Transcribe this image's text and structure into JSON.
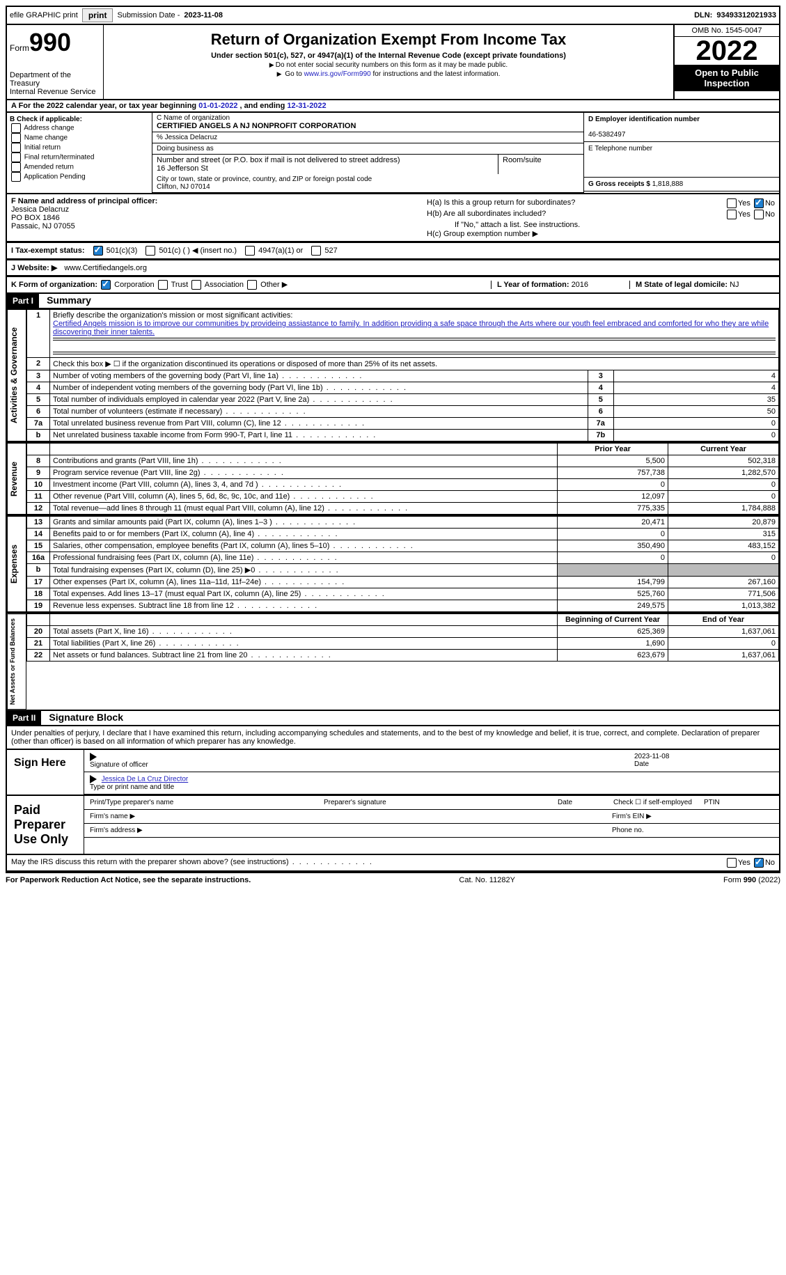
{
  "topbar": {
    "efile": "efile GRAPHIC print",
    "subdate_label": "Submission Date - ",
    "subdate": "2023-11-08",
    "dln_label": "DLN: ",
    "dln": "93493312021933"
  },
  "header": {
    "form_word": "Form",
    "form_num": "990",
    "dept": "Department of the Treasury",
    "irs": "Internal Revenue Service",
    "title": "Return of Organization Exempt From Income Tax",
    "subtitle": "Under section 501(c), 527, or 4947(a)(1) of the Internal Revenue Code (except private foundations)",
    "note1": "Do not enter social security numbers on this form as it may be made public.",
    "note2_pre": "Go to ",
    "note2_link": "www.irs.gov/Form990",
    "note2_post": " for instructions and the latest information.",
    "omb": "OMB No. 1545-0047",
    "year": "2022",
    "inspect": "Open to Public Inspection"
  },
  "sectionA": {
    "text": "A For the 2022 calendar year, or tax year beginning ",
    "begin": "01-01-2022",
    "mid": " , and ending ",
    "end": "12-31-2022"
  },
  "boxB": {
    "title": "B Check if applicable:",
    "opts": [
      "Address change",
      "Name change",
      "Initial return",
      "Final return/terminated",
      "Amended return",
      "Application Pending"
    ]
  },
  "boxC": {
    "name_label": "C Name of organization",
    "name": "CERTIFIED ANGELS A NJ NONPROFIT CORPORATION",
    "care_of": "% Jessica Delacruz",
    "dba_label": "Doing business as",
    "street_label": "Number and street (or P.O. box if mail is not delivered to street address)",
    "street": "16 Jefferson St",
    "room_label": "Room/suite",
    "city_label": "City or town, state or province, country, and ZIP or foreign postal code",
    "city": "Clifton, NJ  07014"
  },
  "boxD": {
    "ein_label": "D Employer identification number",
    "ein": "46-5382497",
    "phone_label": "E Telephone number",
    "gross_label": "G Gross receipts $ ",
    "gross": "1,818,888"
  },
  "boxF": {
    "label": "F  Name and address of principal officer:",
    "name": "Jessica Delacruz",
    "addr1": "PO BOX 1846",
    "addr2": "Passaic, NJ  07055"
  },
  "boxH": {
    "ha": "H(a)  Is this a group return for subordinates?",
    "ha_no": true,
    "hb": "H(b)  Are all subordinates included?",
    "hb_note": "If \"No,\" attach a list. See instructions.",
    "hc": "H(c)  Group exemption number ▶"
  },
  "taxrow": {
    "label": "I  Tax-exempt status:",
    "c3": "501(c)(3)",
    "c": "501(c) (  ) ◀ (insert no.)",
    "a1": "4947(a)(1) or",
    "s527": "527"
  },
  "webrow": {
    "label": "J Website: ▶",
    "url": "  www.Certifiedangels.org"
  },
  "krow": {
    "k": "K Form of organization:",
    "corp": "Corporation",
    "trust": "Trust",
    "assoc": "Association",
    "other": "Other ▶",
    "l": "L Year of formation: ",
    "lval": "2016",
    "m": "M State of legal domicile: ",
    "mval": "NJ"
  },
  "part1": {
    "hdr": "Part I",
    "title": "Summary"
  },
  "mission": {
    "q": "Briefly describe the organization's mission or most significant activities:",
    "text": "Certified Angels mission is to improve our communities by provideing assiastance to family. In addition providing a safe space through the Arts where our youth feel embraced and comforted for who they are while discovering their inner talents."
  },
  "lines": {
    "l2": "Check this box ▶ ☐  if the organization discontinued its operations or disposed of more than 25% of its net assets.",
    "l3": {
      "t": "Number of voting members of the governing body (Part VI, line 1a)",
      "v": "4"
    },
    "l4": {
      "t": "Number of independent voting members of the governing body (Part VI, line 1b)",
      "v": "4"
    },
    "l5": {
      "t": "Total number of individuals employed in calendar year 2022 (Part V, line 2a)",
      "v": "35"
    },
    "l6": {
      "t": "Total number of volunteers (estimate if necessary)",
      "v": "50"
    },
    "l7a": {
      "t": "Total unrelated business revenue from Part VIII, column (C), line 12",
      "v": "0"
    },
    "l7b": {
      "t": "Net unrelated business taxable income from Form 990-T, Part I, line 11",
      "v": "0"
    }
  },
  "cols": {
    "prior": "Prior Year",
    "current": "Current Year",
    "boy": "Beginning of Current Year",
    "eoy": "End of Year"
  },
  "rev": [
    {
      "n": "8",
      "t": "Contributions and grants (Part VIII, line 1h)",
      "p": "5,500",
      "c": "502,318"
    },
    {
      "n": "9",
      "t": "Program service revenue (Part VIII, line 2g)",
      "p": "757,738",
      "c": "1,282,570"
    },
    {
      "n": "10",
      "t": "Investment income (Part VIII, column (A), lines 3, 4, and 7d )",
      "p": "0",
      "c": "0"
    },
    {
      "n": "11",
      "t": "Other revenue (Part VIII, column (A), lines 5, 6d, 8c, 9c, 10c, and 11e)",
      "p": "12,097",
      "c": "0"
    },
    {
      "n": "12",
      "t": "Total revenue—add lines 8 through 11 (must equal Part VIII, column (A), line 12)",
      "p": "775,335",
      "c": "1,784,888"
    }
  ],
  "exp": [
    {
      "n": "13",
      "t": "Grants and similar amounts paid (Part IX, column (A), lines 1–3 )",
      "p": "20,471",
      "c": "20,879"
    },
    {
      "n": "14",
      "t": "Benefits paid to or for members (Part IX, column (A), line 4)",
      "p": "0",
      "c": "315"
    },
    {
      "n": "15",
      "t": "Salaries, other compensation, employee benefits (Part IX, column (A), lines 5–10)",
      "p": "350,490",
      "c": "483,152"
    },
    {
      "n": "16a",
      "t": "Professional fundraising fees (Part IX, column (A), line 11e)",
      "p": "0",
      "c": "0"
    },
    {
      "n": "b",
      "t": "Total fundraising expenses (Part IX, column (D), line 25) ▶0",
      "p": "",
      "c": "",
      "shade": true
    },
    {
      "n": "17",
      "t": "Other expenses (Part IX, column (A), lines 11a–11d, 11f–24e)",
      "p": "154,799",
      "c": "267,160"
    },
    {
      "n": "18",
      "t": "Total expenses. Add lines 13–17 (must equal Part IX, column (A), line 25)",
      "p": "525,760",
      "c": "771,506"
    },
    {
      "n": "19",
      "t": "Revenue less expenses. Subtract line 18 from line 12",
      "p": "249,575",
      "c": "1,013,382"
    }
  ],
  "net": [
    {
      "n": "20",
      "t": "Total assets (Part X, line 16)",
      "p": "625,369",
      "c": "1,637,061"
    },
    {
      "n": "21",
      "t": "Total liabilities (Part X, line 26)",
      "p": "1,690",
      "c": "0"
    },
    {
      "n": "22",
      "t": "Net assets or fund balances. Subtract line 21 from line 20",
      "p": "623,679",
      "c": "1,637,061"
    }
  ],
  "vlabels": {
    "ag": "Activities & Governance",
    "rev": "Revenue",
    "exp": "Expenses",
    "net": "Net Assets or Fund Balances"
  },
  "part2": {
    "hdr": "Part II",
    "title": "Signature Block",
    "decl": "Under penalties of perjury, I declare that I have examined this return, including accompanying schedules and statements, and to the best of my knowledge and belief, it is true, correct, and complete. Declaration of preparer (other than officer) is based on all information of which preparer has any knowledge."
  },
  "sign": {
    "label": "Sign Here",
    "sig_label": "Signature of officer",
    "date": "2023-11-08",
    "date_label": "Date",
    "name": "Jessica De La Cruz  Director",
    "name_label": "Type or print name and title"
  },
  "paid": {
    "label": "Paid Preparer Use Only",
    "h1": "Print/Type preparer's name",
    "h2": "Preparer's signature",
    "h3": "Date",
    "h4": "Check ☐  if self-employed",
    "h5": "PTIN",
    "firm_name": "Firm's name   ▶",
    "firm_ein": "Firm's EIN ▶",
    "firm_addr": "Firm's address ▶",
    "phone": "Phone no."
  },
  "may": {
    "q": "May the IRS discuss this return with the preparer shown above? (see instructions)",
    "no": true
  },
  "footer": {
    "l": "For Paperwork Reduction Act Notice, see the separate instructions.",
    "m": "Cat. No. 11282Y",
    "r": "Form 990 (2022)"
  }
}
